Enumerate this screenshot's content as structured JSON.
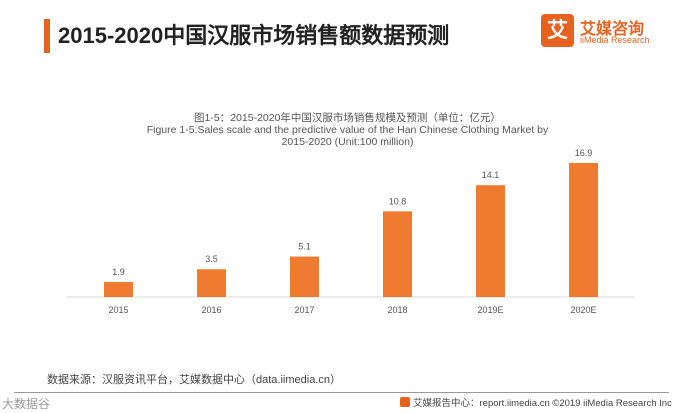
{
  "header": {
    "title": "2015-2020中国汉服市场销售额数据预测",
    "accent_color": "#e8621f"
  },
  "logo": {
    "mark": "艾",
    "name_cn": "艾媒咨询",
    "name_en": "iiMedia Research"
  },
  "chart_data": {
    "type": "bar",
    "title_cn": "图1-5：2015-2020年中国汉服市场销售规模及预测（单位：亿元）",
    "title_en_line1": "Figure 1-5:Sales scale and the predictive value of the Han Chinese Clothing Market by",
    "title_en_line2": "2015-2020 (Unit:100 million)",
    "categories": [
      "2015",
      "2016",
      "2017",
      "2018",
      "2019E",
      "2020E"
    ],
    "values": [
      1.9,
      3.5,
      5.1,
      10.8,
      14.1,
      16.9
    ],
    "value_labels": [
      "1.9",
      "3.5",
      "5.1",
      "10.8",
      "14.1",
      "16.9"
    ],
    "bar_color": "#ee7b30",
    "ylim": [
      0,
      16.9
    ],
    "grid": false,
    "xlabel": "",
    "ylabel": ""
  },
  "source": "数据来源：汉服资讯平台，艾媒数据中心（data.iimedia.cn）",
  "footer": {
    "text": "艾媒报告中心：report.iimedia.cn ©2019 iiMedia Research Inc"
  },
  "watermark": "大数据谷"
}
